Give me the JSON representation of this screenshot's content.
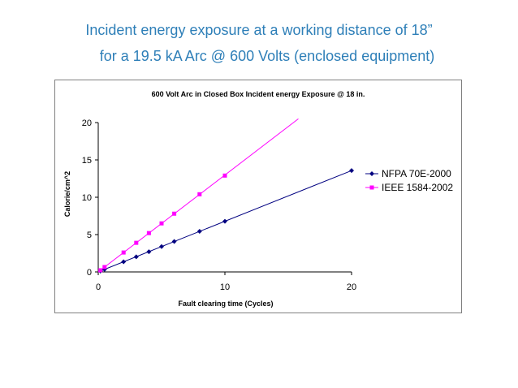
{
  "slide": {
    "title_line_1": "Incident energy exposure at a working distance of 18”",
    "title_line_2": "for a 19.5 kA Arc @ 600 Volts (enclosed equipment)"
  },
  "chart_data": {
    "type": "line",
    "title": "600 Volt Arc in Closed  Box Incident energy Exposure @ 18 in.",
    "xlabel": "Fault clearing time (Cycles)",
    "ylabel": "Calorie/cm^2",
    "xlim": [
      0,
      20
    ],
    "ylim": [
      0,
      20
    ],
    "xticks": [
      0,
      10,
      20
    ],
    "yticks": [
      0,
      5,
      10,
      15,
      20
    ],
    "grid": false,
    "legend_position": "right",
    "series": [
      {
        "name": "NFPA 70E-2000",
        "color": "#000080",
        "marker": "diamond",
        "points": [
          [
            0.17,
            0.11
          ],
          [
            0.5,
            0.34
          ],
          [
            2,
            1.36
          ],
          [
            3,
            2.03
          ],
          [
            4,
            2.71
          ],
          [
            5,
            3.39
          ],
          [
            6,
            4.07
          ],
          [
            8,
            5.43
          ],
          [
            10,
            6.78
          ],
          [
            20,
            13.57
          ]
        ],
        "trend_line": [
          [
            0,
            0
          ],
          [
            20,
            13.57
          ]
        ]
      },
      {
        "name": "IEEE 1584-2002",
        "color": "#ff00ff",
        "marker": "square",
        "points": [
          [
            0.17,
            0.22
          ],
          [
            0.5,
            0.65
          ],
          [
            2,
            2.6
          ],
          [
            3,
            3.9
          ],
          [
            4,
            5.2
          ],
          [
            5,
            6.5
          ],
          [
            6,
            7.8
          ],
          [
            8,
            10.4
          ],
          [
            10,
            12.9
          ]
        ],
        "trend_line": [
          [
            0,
            0
          ],
          [
            15.8,
            20.5
          ]
        ]
      }
    ]
  }
}
